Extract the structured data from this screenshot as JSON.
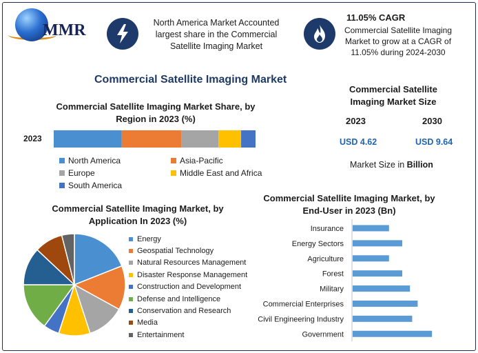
{
  "header": {
    "logo_text": "MMR",
    "highlight_text": "North America Market Accounted largest share in the Commercial Satellite Imaging Market",
    "cagr_title": "11.05% CAGR",
    "cagr_text": "Commercial Satellite Imaging Market to grow at a CAGR of 11.05% during 2024-2030"
  },
  "main_title": "Commercial Satellite Imaging Market",
  "market_size": {
    "title": "Commercial Satellite Imaging Market Size",
    "year_a": "2023",
    "year_b": "2030",
    "value_a": "USD 4.62",
    "value_b": "USD 9.64",
    "note_prefix": "Market Size in ",
    "note_unit": "Billion"
  },
  "colors": {
    "blue": "#4a90d0",
    "orange": "#ec7b33",
    "gray": "#a5a5a5",
    "yellow": "#ffc000",
    "navy_blue": "#4472c4",
    "green": "#70ad47",
    "dark_blue": "#255e91",
    "brown": "#9e480e",
    "dark_gray": "#636363",
    "bar_blue": "#5b9bd5"
  },
  "chart_data": [
    {
      "type": "bar",
      "orientation": "horizontal-stacked",
      "title": "Commercial Satellite Imaging Market Share, by Region in 2023 (%)",
      "categories": [
        "2023"
      ],
      "series": [
        {
          "name": "North America",
          "values": [
            33
          ],
          "color": "#4a90d0"
        },
        {
          "name": "Asia-Pacific",
          "values": [
            29
          ],
          "color": "#ec7b33"
        },
        {
          "name": "Europe",
          "values": [
            18
          ],
          "color": "#a5a5a5"
        },
        {
          "name": "Middle East and Africa",
          "values": [
            11
          ],
          "color": "#ffc000"
        },
        {
          "name": "South America",
          "values": [
            7
          ],
          "color": "#4472c4"
        }
      ],
      "legend": "bottom"
    },
    {
      "type": "pie",
      "title": "Commercial Satellite Imaging Market, by Application In 2023 (%)",
      "categories": [
        "Energy",
        "Geospatial Technology",
        "Natural Resources Management",
        "Disaster Response Management",
        "Construction and Development",
        "Defense and Intelligence",
        "Conservation and Research",
        "Media",
        "Entertainment"
      ],
      "values": [
        19,
        14,
        12,
        10,
        5,
        15,
        12,
        9,
        4
      ],
      "colors": [
        "#4a90d0",
        "#ec7b33",
        "#a5a5a5",
        "#ffc000",
        "#4472c4",
        "#70ad47",
        "#255e91",
        "#9e480e",
        "#636363"
      ],
      "legend": "right"
    },
    {
      "type": "bar",
      "orientation": "horizontal",
      "title": "Commercial Satellite Imaging Market, by End-User in 2023 (Bn)",
      "categories": [
        "Insurance",
        "Energy Sectors",
        "Agriculture",
        "Forest",
        "Military",
        "Commercial Enterprises",
        "Civil Engineering Industry",
        "Government"
      ],
      "values": [
        0.33,
        0.45,
        0.33,
        0.45,
        0.52,
        0.59,
        0.54,
        0.72
      ],
      "color": "#5b9bd5"
    }
  ]
}
